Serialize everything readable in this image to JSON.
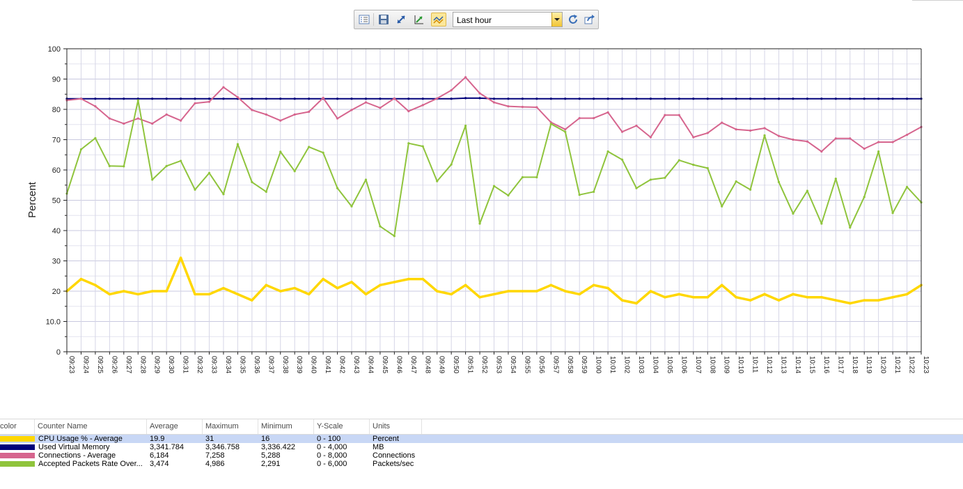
{
  "toolbar": {
    "buttons": [
      {
        "name": "properties-button",
        "icon": "list-icon"
      },
      {
        "name": "save-button",
        "icon": "save-icon"
      },
      {
        "name": "zoom-button",
        "icon": "resize-arrow-icon"
      },
      {
        "name": "scale-button",
        "icon": "chart-scale-icon"
      },
      {
        "name": "highlight-button",
        "icon": "highlight-lines-icon",
        "active": true
      },
      {
        "name": "refresh-button",
        "icon": "refresh-icon"
      },
      {
        "name": "export-button",
        "icon": "export-icon"
      }
    ],
    "time_range": "Last hour"
  },
  "chart_data": {
    "type": "line",
    "ylabel": "Percent",
    "ylim": [
      0,
      100
    ],
    "ytick_labels": [
      "0",
      "10.0",
      "20",
      "30",
      "40",
      "50",
      "60",
      "70",
      "80",
      "90",
      "100"
    ],
    "categories": [
      "09:23",
      "09:24",
      "09:25",
      "09:26",
      "09:27",
      "09:28",
      "09:29",
      "09:30",
      "09:31",
      "09:32",
      "09:33",
      "09:34",
      "09:35",
      "09:36",
      "09:37",
      "09:38",
      "09:39",
      "09:40",
      "09:41",
      "09:42",
      "09:43",
      "09:44",
      "09:45",
      "09:46",
      "09:47",
      "09:48",
      "09:49",
      "09:50",
      "09:51",
      "09:52",
      "09:53",
      "09:54",
      "09:55",
      "09:56",
      "09:57",
      "09:58",
      "09:59",
      "10:00",
      "10:01",
      "10:02",
      "10:03",
      "10:04",
      "10:05",
      "10:06",
      "10:07",
      "10:08",
      "10:09",
      "10:10",
      "10:11",
      "10:12",
      "10:13",
      "10:14",
      "10:15",
      "10:16",
      "10:17",
      "10:18",
      "10:19",
      "10:20",
      "10:21",
      "10:22",
      "10:23"
    ],
    "grid": true,
    "series": [
      {
        "name": "Used Virtual Memory",
        "color": "#00007a",
        "width": 2,
        "values": [
          83.5,
          83.5,
          83.5,
          83.5,
          83.5,
          83.5,
          83.5,
          83.5,
          83.5,
          83.5,
          83.5,
          83.5,
          83.5,
          83.5,
          83.5,
          83.5,
          83.5,
          83.5,
          83.5,
          83.5,
          83.5,
          83.5,
          83.5,
          83.5,
          83.5,
          83.5,
          83.5,
          83.5,
          83.7,
          83.7,
          83.5,
          83.5,
          83.5,
          83.5,
          83.5,
          83.5,
          83.5,
          83.5,
          83.5,
          83.5,
          83.5,
          83.5,
          83.5,
          83.5,
          83.5,
          83.5,
          83.5,
          83.5,
          83.5,
          83.5,
          83.5,
          83.5,
          83.5,
          83.5,
          83.5,
          83.5,
          83.5,
          83.5,
          83.5,
          83.5,
          83.5
        ]
      },
      {
        "name": "Connections - Average",
        "color": "#d6658e",
        "width": 2,
        "values": [
          83,
          83.5,
          81,
          77,
          75.3,
          77,
          75.3,
          78.3,
          76.3,
          82,
          82.5,
          87.3,
          84,
          79.8,
          78.3,
          76.3,
          78.3,
          79.2,
          83.8,
          77,
          79.8,
          82.3,
          80.5,
          83.6,
          79.4,
          81.4,
          83.6,
          86.3,
          90.6,
          85.3,
          82.3,
          81,
          80.8,
          80.7,
          75.7,
          73.4,
          77.1,
          77.1,
          79,
          72.6,
          74.6,
          70.8,
          78.1,
          78.1,
          70.8,
          72.2,
          75.6,
          73.4,
          73,
          73.8,
          71.2,
          70,
          69.4,
          66.1,
          70.4,
          70.4,
          67,
          69.2,
          69.2,
          71.6,
          74.2
        ]
      },
      {
        "name": "Accepted Packets Rate Over...",
        "color": "#8fc43c",
        "width": 2,
        "values": [
          52.2,
          66.8,
          70.5,
          61.3,
          61.2,
          83,
          56.8,
          61.3,
          63,
          53.5,
          59,
          52,
          68.5,
          56,
          52.8,
          66,
          59.6,
          67.6,
          65.7,
          54,
          48,
          56.8,
          41.4,
          38.2,
          68.8,
          67.8,
          56.3,
          61.8,
          74.6,
          42.3,
          54.7,
          51.6,
          57.6,
          57.6,
          75.2,
          72.6,
          51.8,
          52.8,
          66.1,
          63.4,
          54,
          56.8,
          57.4,
          63.2,
          61.7,
          60.6,
          48,
          56.2,
          53.5,
          71.4,
          56,
          45.6,
          53.1,
          42.3,
          57.1,
          41,
          51.1,
          66.1,
          45.8,
          54.4,
          49.3
        ]
      },
      {
        "name": "CPU Usage % - Average",
        "color": "#ffd700",
        "width": 3.5,
        "values": [
          20,
          24,
          22,
          19,
          20,
          19,
          20,
          20,
          31,
          19,
          19,
          21,
          19,
          17,
          22,
          20,
          21,
          19,
          24,
          21,
          23,
          19,
          22,
          23,
          24,
          24,
          20,
          19,
          22,
          18,
          19,
          20,
          20,
          20,
          22,
          20,
          19,
          22,
          21,
          17,
          16,
          20,
          18,
          19,
          18,
          18,
          22,
          18,
          17,
          19,
          17,
          19,
          18,
          18,
          17,
          16,
          17,
          17,
          18,
          19,
          22
        ]
      }
    ]
  },
  "legend": {
    "headers": {
      "color": "color",
      "name": "Counter Name",
      "average": "Average",
      "maximum": "Maximum",
      "minimum": "Minimum",
      "yscale": "Y-Scale",
      "units": "Units"
    },
    "rows": [
      {
        "color": "#ffd700",
        "name": "CPU Usage % - Average",
        "average": "19.9",
        "maximum": "31",
        "minimum": "16",
        "yscale": "0 - 100",
        "units": "Percent",
        "selected": true
      },
      {
        "color": "#00007a",
        "name": "Used Virtual Memory",
        "average": "3,341.784",
        "maximum": "3,346.758",
        "minimum": "3,336.422",
        "yscale": "0 - 4,000",
        "units": "MB"
      },
      {
        "color": "#d6658e",
        "name": "Connections - Average",
        "average": "6,184",
        "maximum": "7,258",
        "minimum": "5,288",
        "yscale": "0 - 8,000",
        "units": "Connections"
      },
      {
        "color": "#8fc43c",
        "name": "Accepted Packets Rate Over...",
        "average": "3,474",
        "maximum": "4,986",
        "minimum": "2,291",
        "yscale": "0 - 6,000",
        "units": "Packets/sec"
      }
    ]
  }
}
